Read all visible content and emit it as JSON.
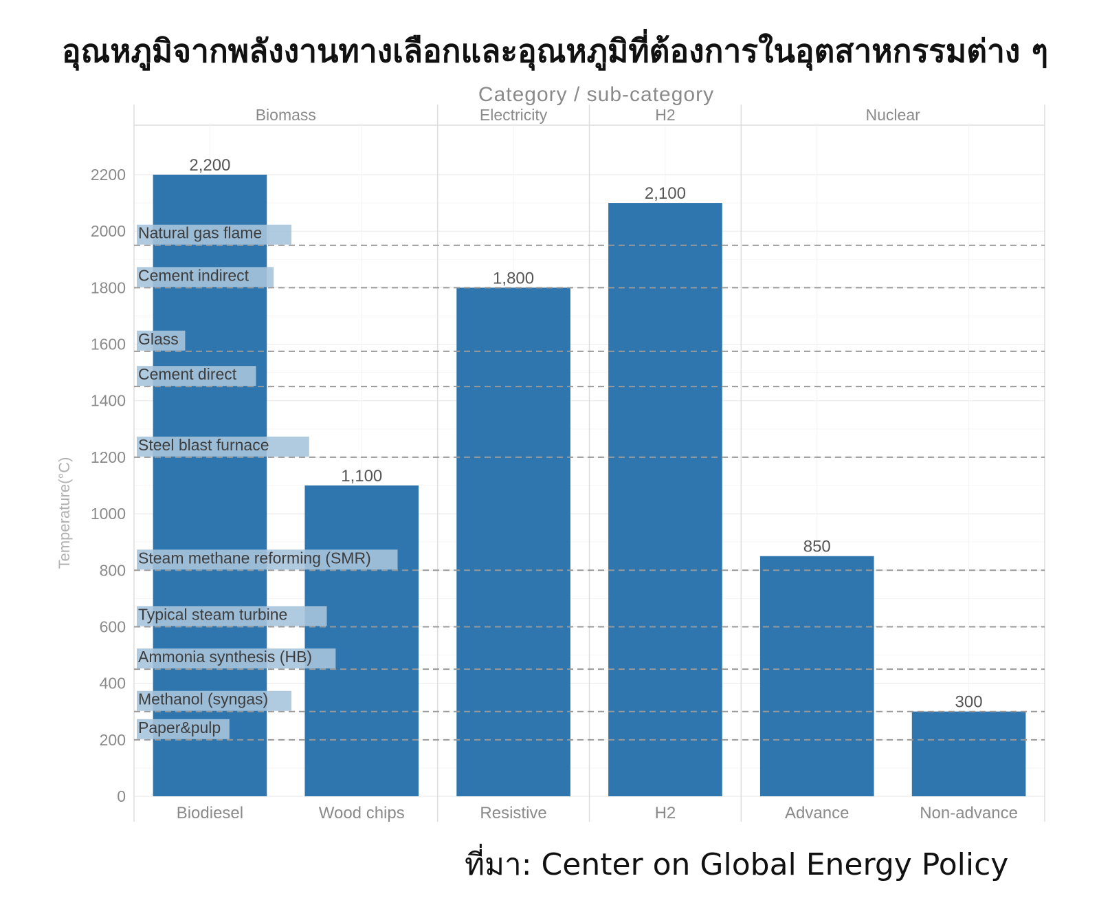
{
  "title": "อุณหภูมิจากพลังงานทางเลือกและอุณหภูมิที่ต้องการในอุตสาหกรรมต่าง ๆ",
  "source": "ที่มา: Center on Global Energy Policy",
  "chart_data": {
    "type": "bar",
    "facet_title": "Category / sub-category",
    "ylabel": "Temperature(°C)",
    "ylim": [
      0,
      2200
    ],
    "yticks": [
      0,
      200,
      400,
      600,
      800,
      1000,
      1200,
      1400,
      1600,
      1800,
      2000,
      2200
    ],
    "facets": [
      {
        "name": "Biomass",
        "bars": [
          {
            "category": "Biodiesel",
            "value": 2200,
            "label": "2,200"
          },
          {
            "category": "Wood chips",
            "value": 1100,
            "label": "1,100"
          }
        ]
      },
      {
        "name": "Electricity",
        "bars": [
          {
            "category": "Resistive",
            "value": 1800,
            "label": "1,800"
          }
        ]
      },
      {
        "name": "H2",
        "bars": [
          {
            "category": "H2",
            "value": 2100,
            "label": "2,100"
          }
        ]
      },
      {
        "name": "Nuclear",
        "bars": [
          {
            "category": "Advance",
            "value": 850,
            "label": "850"
          },
          {
            "category": "Non-advance",
            "value": 300,
            "label": "300"
          }
        ]
      }
    ],
    "reference_lines": [
      {
        "label": "Natural gas flame",
        "value": 1950
      },
      {
        "label": "Cement indirect",
        "value": 1800
      },
      {
        "label": "Glass",
        "value": 1575
      },
      {
        "label": "Cement direct",
        "value": 1450
      },
      {
        "label": "Steel blast furnace",
        "value": 1200
      },
      {
        "label": "Steam methane reforming (SMR)",
        "value": 800
      },
      {
        "label": "Typical steam turbine",
        "value": 600
      },
      {
        "label": "Ammonia synthesis (HB)",
        "value": 450
      },
      {
        "label": "Methanol (syngas)",
        "value": 300
      },
      {
        "label": "Paper&pulp",
        "value": 200
      }
    ],
    "grid": true,
    "colors": {
      "bar": "#2e76ad",
      "label_bg": "#a7c4dc",
      "reference_line": "#999999",
      "axis_text": "#8a8a8a",
      "value_text": "#555555",
      "panel_line": "#dedede"
    }
  }
}
